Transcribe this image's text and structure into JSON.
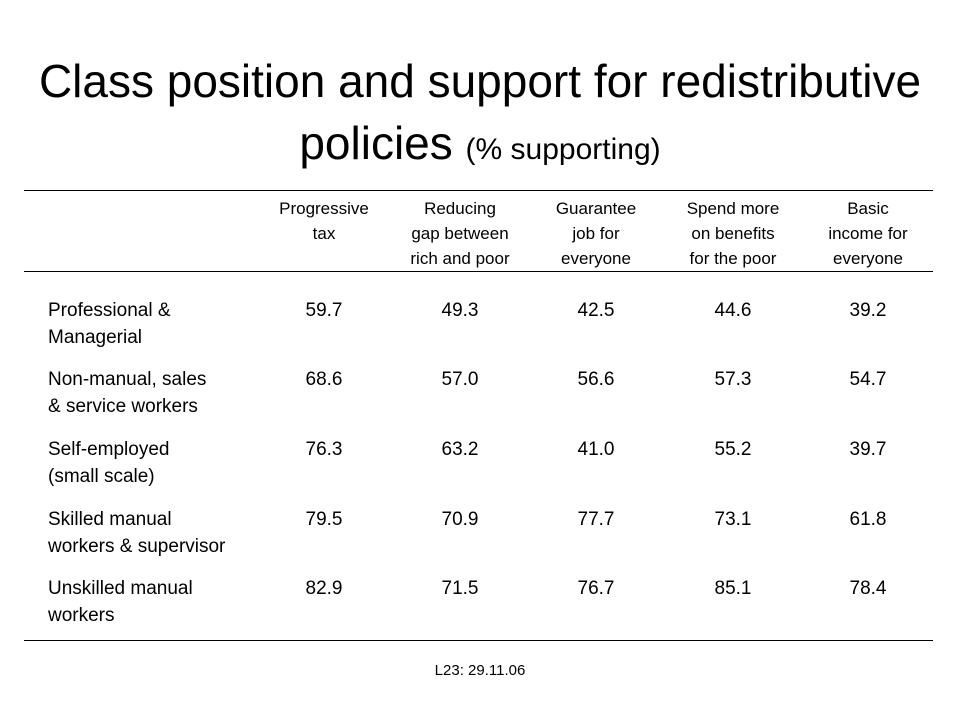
{
  "slide": {
    "title_main": "Class position and support for redistributive policies",
    "title_sub": "(% supporting)",
    "footer": "L23: 29.11.06"
  },
  "table": {
    "columns": [
      {
        "lines": [
          "Progressive",
          "tax"
        ]
      },
      {
        "lines": [
          "Reducing",
          "gap between",
          "rich and poor"
        ]
      },
      {
        "lines": [
          "Guarantee",
          "job for",
          "everyone"
        ]
      },
      {
        "lines": [
          "Spend more",
          "on benefits",
          "for the poor"
        ]
      },
      {
        "lines": [
          "Basic",
          "income for",
          "everyone"
        ]
      }
    ],
    "rows": [
      {
        "label": [
          "Professional &",
          "Managerial"
        ],
        "values": [
          "59.7",
          "49.3",
          "42.5",
          "44.6",
          "39.2"
        ]
      },
      {
        "label": [
          "Non-manual, sales",
          "& service workers"
        ],
        "values": [
          "68.6",
          "57.0",
          "56.6",
          "57.3",
          "54.7"
        ]
      },
      {
        "label": [
          "Self-employed",
          "(small scale)"
        ],
        "values": [
          "76.3",
          "63.2",
          "41.0",
          "55.2",
          "39.7"
        ]
      },
      {
        "label": [
          "Skilled manual",
          "workers & supervisor"
        ],
        "values": [
          "79.5",
          "70.9",
          "77.7",
          "73.1",
          "61.8"
        ]
      },
      {
        "label": [
          "Unskilled manual",
          "workers"
        ],
        "values": [
          "82.9",
          "71.5",
          "76.7",
          "85.1",
          "78.4"
        ]
      }
    ]
  }
}
